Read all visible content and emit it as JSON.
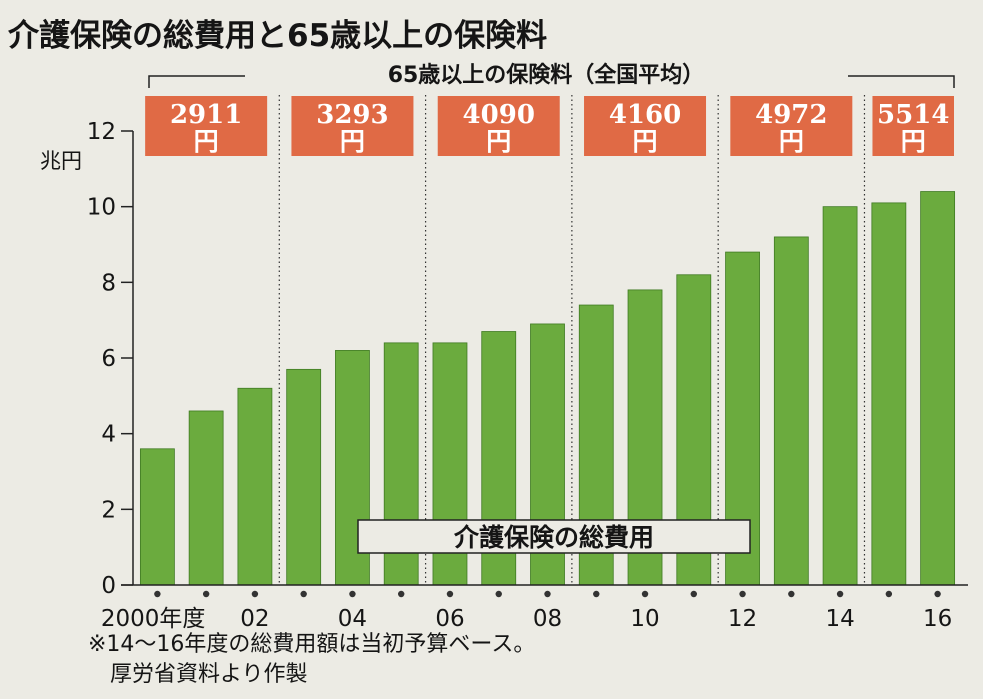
{
  "chart_data": {
    "type": "bar",
    "title": "介護保険の総費用と65歳以上の保険料",
    "premium_header": "65歳以上の保険料（全国平均）",
    "unit_label": "兆円",
    "series_label": "介護保険の総費用",
    "ylim": [
      0,
      12
    ],
    "yticks": [
      "0",
      "2",
      "4",
      "6",
      "8",
      "10",
      "12"
    ],
    "years": [
      2000,
      2001,
      2002,
      2003,
      2004,
      2005,
      2006,
      2007,
      2008,
      2009,
      2010,
      2011,
      2012,
      2013,
      2014,
      2015,
      2016
    ],
    "values": [
      3.6,
      4.6,
      5.2,
      5.7,
      6.2,
      6.4,
      6.4,
      6.7,
      6.9,
      7.4,
      7.8,
      8.2,
      8.8,
      9.2,
      10.0,
      10.1,
      10.4
    ],
    "x_tick_labels": [
      {
        "index": 0,
        "label": "2000年度"
      },
      {
        "index": 2,
        "label": "02"
      },
      {
        "index": 4,
        "label": "04"
      },
      {
        "index": 6,
        "label": "06"
      },
      {
        "index": 8,
        "label": "08"
      },
      {
        "index": 10,
        "label": "10"
      },
      {
        "index": 12,
        "label": "12"
      },
      {
        "index": 14,
        "label": "14"
      },
      {
        "index": 16,
        "label": "16"
      }
    ],
    "premium_periods": [
      {
        "start": 0,
        "end": 2,
        "value": "2911",
        "unit": "円"
      },
      {
        "start": 3,
        "end": 5,
        "value": "3293",
        "unit": "円"
      },
      {
        "start": 6,
        "end": 8,
        "value": "4090",
        "unit": "円"
      },
      {
        "start": 9,
        "end": 11,
        "value": "4160",
        "unit": "円"
      },
      {
        "start": 12,
        "end": 14,
        "value": "4972",
        "unit": "円"
      },
      {
        "start": 15,
        "end": 16,
        "value": "5514",
        "unit": "円"
      }
    ],
    "notes": [
      "※14〜16年度の総費用額は当初予算ベース。",
      "厚労省資料より作製"
    ],
    "colors": {
      "bar": "#6bab3e",
      "premium_box": "#e06a45",
      "background": "#ecebe4"
    }
  }
}
